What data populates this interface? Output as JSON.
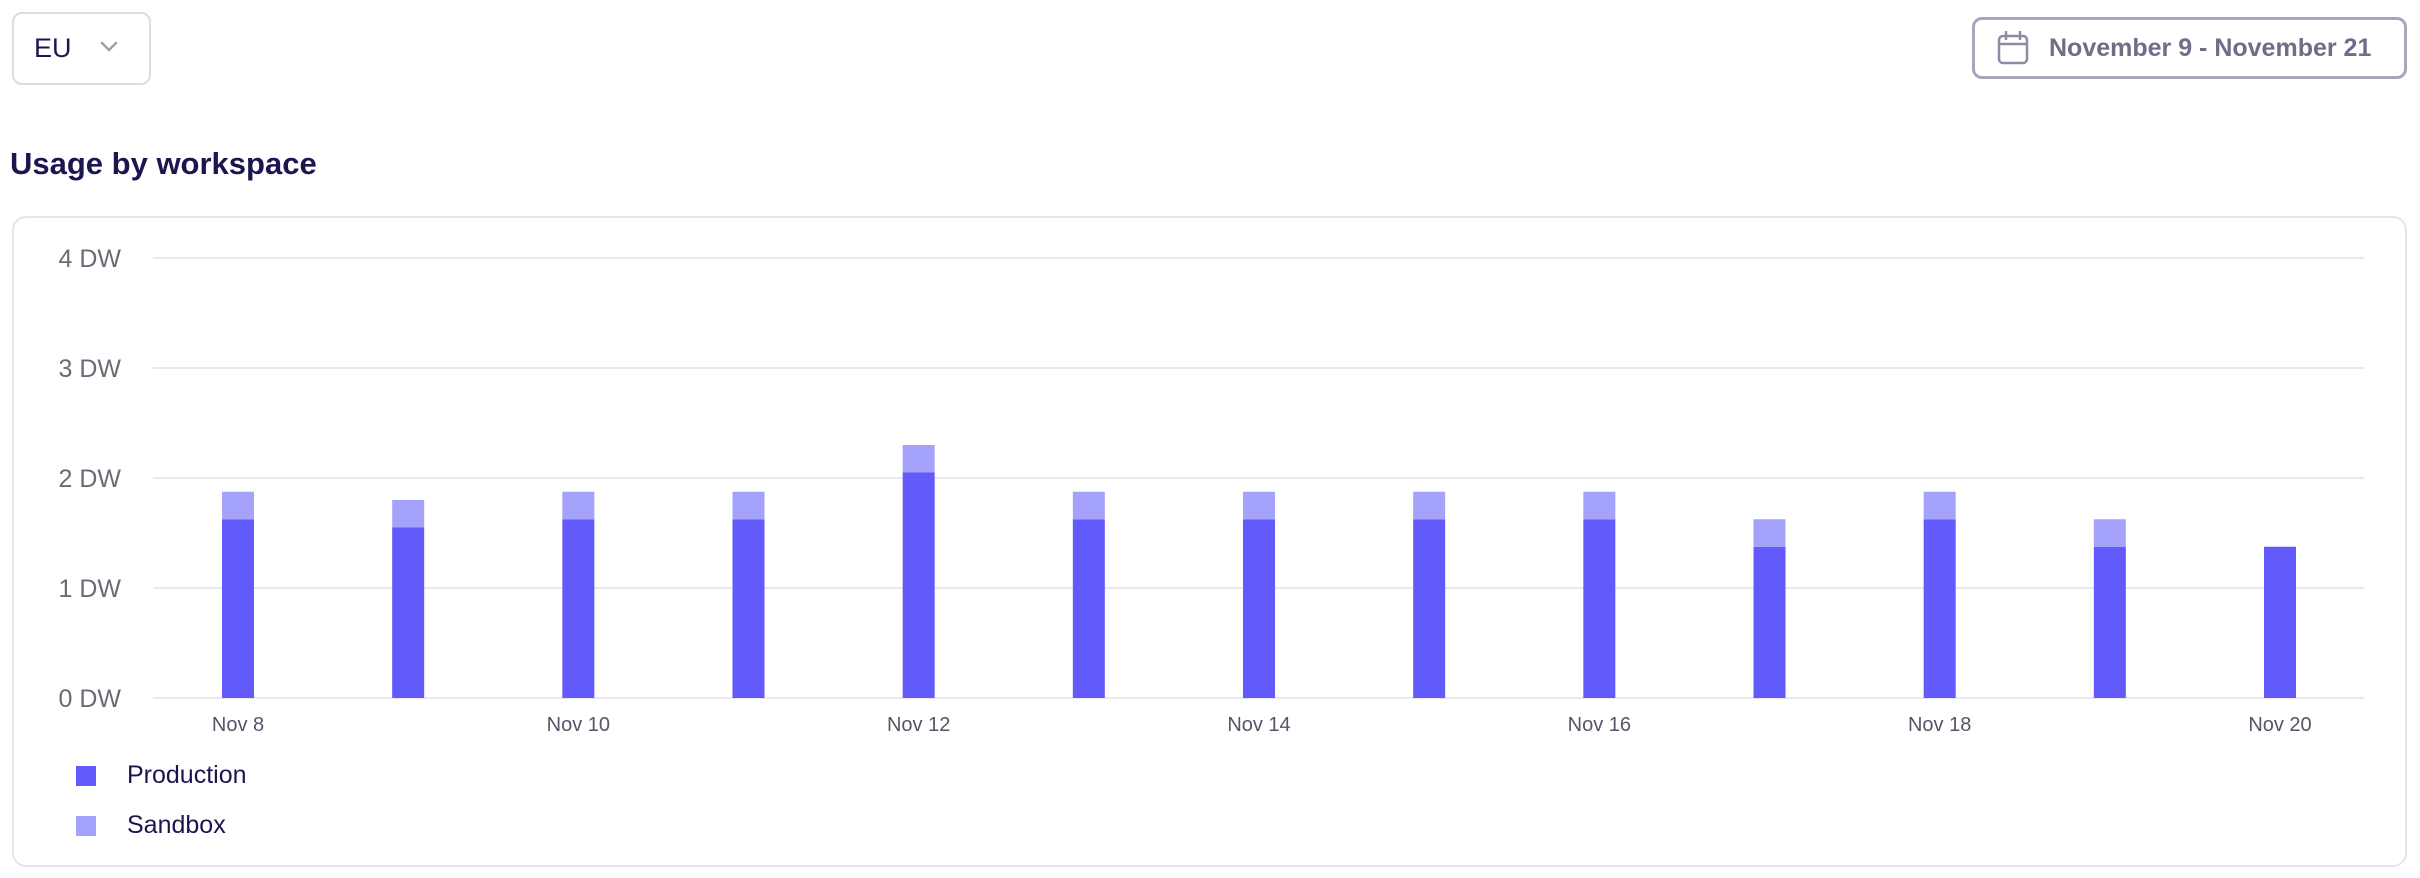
{
  "region_select": {
    "value": "EU",
    "icon": "chevron-down-icon"
  },
  "date_range": {
    "label": "November 9 - November 21",
    "icon": "calendar-icon"
  },
  "section_title": "Usage by workspace",
  "colors": {
    "production": "#625afa",
    "sandbox": "#a5a2fb",
    "grid": "#e8e8ee"
  },
  "chart_data": {
    "type": "bar",
    "stacked": true,
    "categories": [
      "Nov 8",
      "Nov 9",
      "Nov 10",
      "Nov 11",
      "Nov 12",
      "Nov 13",
      "Nov 14",
      "Nov 15",
      "Nov 16",
      "Nov 17",
      "Nov 18",
      "Nov 19",
      "Nov 20"
    ],
    "x_tick_labels": [
      "Nov 8",
      "Nov 10",
      "Nov 12",
      "Nov 14",
      "Nov 16",
      "Nov 18",
      "Nov 20"
    ],
    "y_tick_labels": [
      "0 DW",
      "1 DW",
      "2 DW",
      "3 DW",
      "4 DW"
    ],
    "ylim": [
      0,
      4
    ],
    "unit": "DW",
    "grid": true,
    "legend_placement": "bottom-left",
    "series": [
      {
        "name": "Production",
        "values": [
          1.625,
          1.55,
          1.625,
          1.625,
          2.05,
          1.625,
          1.625,
          1.625,
          1.625,
          1.375,
          1.625,
          1.375,
          1.375
        ]
      },
      {
        "name": "Sandbox",
        "values": [
          0.25,
          0.25,
          0.25,
          0.25,
          0.25,
          0.25,
          0.25,
          0.25,
          0.25,
          0.25,
          0.25,
          0.25,
          0
        ]
      }
    ]
  }
}
